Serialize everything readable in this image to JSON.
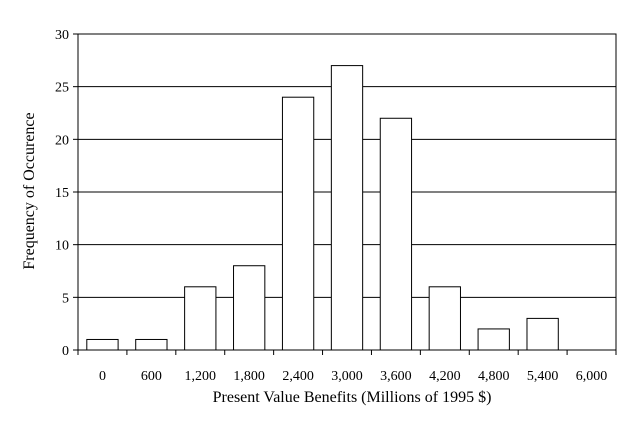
{
  "chart_data": {
    "type": "bar",
    "title": "",
    "xlabel": "Present Value Benefits (Millions of 1995 $)",
    "ylabel": "Frequency of Occurence",
    "categories": [
      "0",
      "600",
      "1,200",
      "1,800",
      "2,400",
      "3,000",
      "3,600",
      "4,200",
      "4,800",
      "5,400",
      "6,000"
    ],
    "values": [
      1,
      1,
      6,
      8,
      24,
      27,
      22,
      6,
      2,
      3,
      0
    ],
    "ylim": [
      0,
      30
    ],
    "yticks": [
      0,
      5,
      10,
      15,
      20,
      25,
      30
    ],
    "grid": true,
    "legend": "none",
    "colors": {
      "bar_fill": "#ffffff",
      "bar_stroke": "#000000",
      "grid": "#000000"
    }
  }
}
